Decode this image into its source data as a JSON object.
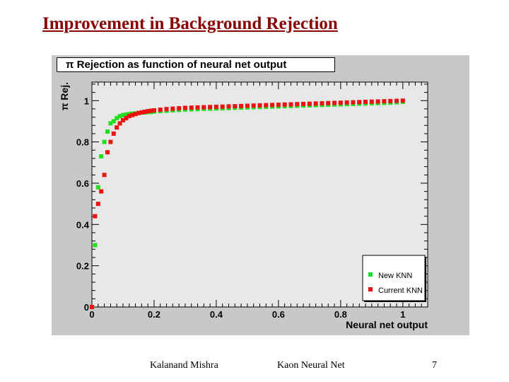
{
  "slide": {
    "title": "Improvement in Background Rejection"
  },
  "footer": {
    "author": "Kalanand Mishra",
    "topic": "Kaon Neural Net",
    "page_number": "7"
  },
  "chart_data": {
    "type": "scatter",
    "title": "π Rejection as function of neural net output",
    "xlabel": "Neural net output",
    "ylabel": "π Rej.",
    "xlim": [
      0,
      1.08
    ],
    "ylim": [
      0,
      1.09
    ],
    "xticks": [
      0,
      0.2,
      0.4,
      0.6,
      0.8,
      1
    ],
    "xtick_labels": [
      "0",
      "0.2",
      "0.4",
      "0.6",
      "0.8",
      "1"
    ],
    "yticks": [
      0,
      0.2,
      0.4,
      0.6,
      0.8,
      1
    ],
    "ytick_labels": [
      "0",
      "0.2",
      "0.4",
      "0.6",
      "0.8",
      "1"
    ],
    "legend_position": "bottom-right",
    "series": [
      {
        "name": "New KNN",
        "color": "#22dd22",
        "x": [
          0.0,
          0.01,
          0.02,
          0.03,
          0.04,
          0.05,
          0.06,
          0.07,
          0.08,
          0.09,
          0.1,
          0.11,
          0.12,
          0.13,
          0.14,
          0.15,
          0.16,
          0.17,
          0.18,
          0.19,
          0.2,
          0.22,
          0.24,
          0.26,
          0.28,
          0.3,
          0.32,
          0.34,
          0.36,
          0.38,
          0.4,
          0.42,
          0.44,
          0.46,
          0.48,
          0.5,
          0.52,
          0.54,
          0.56,
          0.58,
          0.6,
          0.62,
          0.64,
          0.66,
          0.68,
          0.7,
          0.72,
          0.74,
          0.76,
          0.78,
          0.8,
          0.82,
          0.84,
          0.86,
          0.88,
          0.9,
          0.92,
          0.94,
          0.96,
          0.98,
          1.0
        ],
        "y": [
          0.0,
          0.3,
          0.58,
          0.73,
          0.8,
          0.85,
          0.89,
          0.9,
          0.915,
          0.925,
          0.93,
          0.933,
          0.935,
          0.937,
          0.938,
          0.94,
          0.942,
          0.943,
          0.944,
          0.945,
          0.947,
          0.949,
          0.951,
          0.953,
          0.955,
          0.957,
          0.958,
          0.959,
          0.96,
          0.961,
          0.962,
          0.963,
          0.964,
          0.965,
          0.966,
          0.967,
          0.968,
          0.969,
          0.97,
          0.971,
          0.972,
          0.973,
          0.974,
          0.975,
          0.976,
          0.977,
          0.978,
          0.979,
          0.98,
          0.981,
          0.982,
          0.983,
          0.984,
          0.985,
          0.986,
          0.987,
          0.988,
          0.989,
          0.99,
          0.992,
          0.994
        ]
      },
      {
        "name": "Current KNN",
        "color": "#ee1111",
        "x": [
          0.0,
          0.01,
          0.02,
          0.03,
          0.04,
          0.05,
          0.06,
          0.07,
          0.08,
          0.09,
          0.1,
          0.11,
          0.12,
          0.13,
          0.14,
          0.15,
          0.16,
          0.17,
          0.18,
          0.19,
          0.2,
          0.22,
          0.24,
          0.26,
          0.28,
          0.3,
          0.32,
          0.34,
          0.36,
          0.38,
          0.4,
          0.42,
          0.44,
          0.46,
          0.48,
          0.5,
          0.52,
          0.54,
          0.56,
          0.58,
          0.6,
          0.62,
          0.64,
          0.66,
          0.68,
          0.7,
          0.72,
          0.74,
          0.76,
          0.78,
          0.8,
          0.82,
          0.84,
          0.86,
          0.88,
          0.9,
          0.92,
          0.94,
          0.96,
          0.98,
          1.0
        ],
        "y": [
          0.0,
          0.44,
          0.5,
          0.56,
          0.64,
          0.75,
          0.8,
          0.84,
          0.87,
          0.89,
          0.905,
          0.915,
          0.925,
          0.93,
          0.935,
          0.94,
          0.943,
          0.946,
          0.949,
          0.951,
          0.953,
          0.956,
          0.959,
          0.961,
          0.963,
          0.965,
          0.966,
          0.967,
          0.968,
          0.969,
          0.97,
          0.971,
          0.972,
          0.973,
          0.974,
          0.975,
          0.976,
          0.977,
          0.978,
          0.979,
          0.98,
          0.981,
          0.982,
          0.983,
          0.984,
          0.985,
          0.986,
          0.987,
          0.988,
          0.989,
          0.99,
          0.991,
          0.992,
          0.993,
          0.994,
          0.995,
          0.996,
          0.997,
          0.998,
          0.999,
          1.0
        ]
      }
    ]
  }
}
